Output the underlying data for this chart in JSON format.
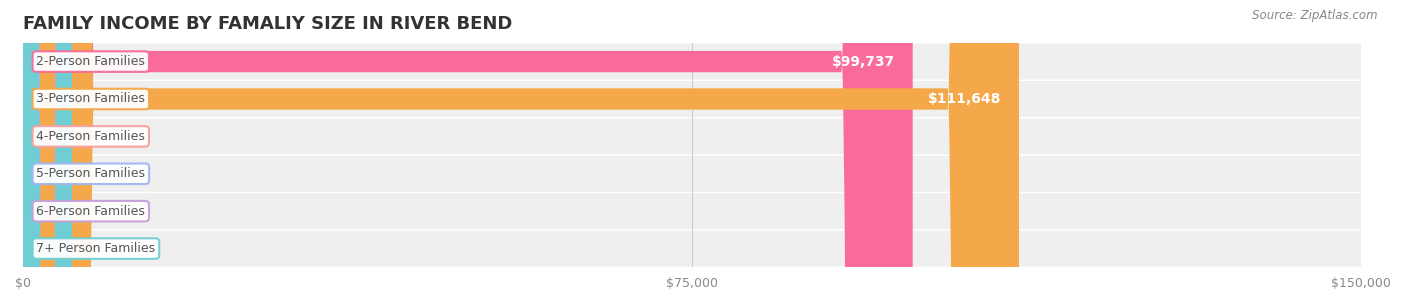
{
  "title": "FAMILY INCOME BY FAMALIY SIZE IN RIVER BEND",
  "source_text": "Source: ZipAtlas.com",
  "categories": [
    "2-Person Families",
    "3-Person Families",
    "4-Person Families",
    "5-Person Families",
    "6-Person Families",
    "7+ Person Families"
  ],
  "values": [
    99737,
    111648,
    0,
    0,
    0,
    0
  ],
  "bar_colors": [
    "#F96B9B",
    "#F5A84A",
    "#F4A0A0",
    "#A0B8F0",
    "#C4A0D8",
    "#70CDD4"
  ],
  "label_colors": [
    "#FFFFFF",
    "#FFFFFF",
    "#555555",
    "#555555",
    "#555555",
    "#555555"
  ],
  "xlim": [
    0,
    150000
  ],
  "xticks": [
    0,
    75000,
    150000
  ],
  "xtick_labels": [
    "$0",
    "$75,000",
    "$150,000"
  ],
  "bar_height": 0.55,
  "background_color": "#FFFFFF",
  "row_bg_colors": [
    "#F0F0F0",
    "#F0F0F0",
    "#F0F0F0",
    "#F0F0F0",
    "#F0F0F0",
    "#F0F0F0"
  ],
  "title_fontsize": 13,
  "label_fontsize": 9,
  "tick_fontsize": 9,
  "source_fontsize": 8.5
}
